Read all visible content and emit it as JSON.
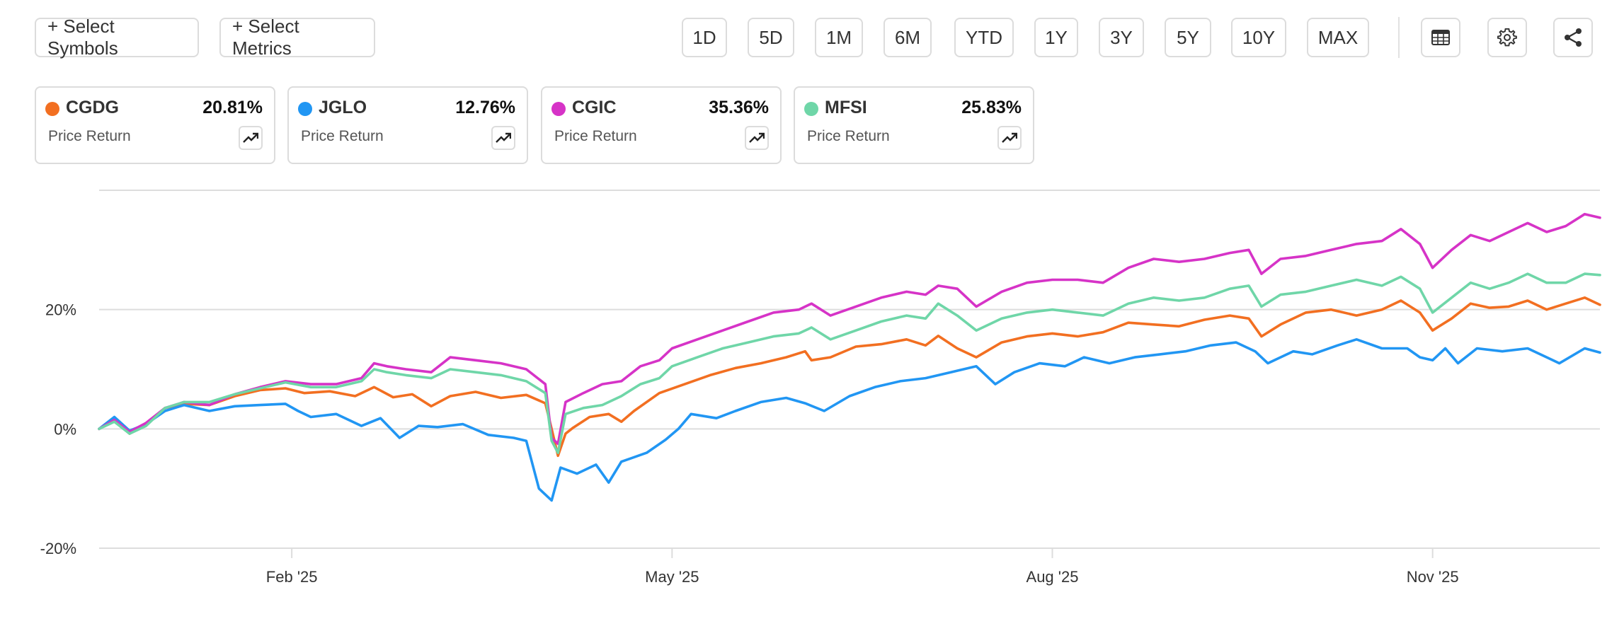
{
  "toolbar": {
    "select_symbols": "+ Select Symbols",
    "select_metrics": "+ Select Metrics",
    "ranges": [
      "1D",
      "5D",
      "1M",
      "6M",
      "YTD",
      "1Y",
      "3Y",
      "5Y",
      "10Y",
      "MAX"
    ],
    "icons": [
      "table-icon",
      "gear-icon",
      "share-icon"
    ]
  },
  "cards": [
    {
      "symbol": "CGDG",
      "value": "20.81%",
      "metric": "Price Return",
      "color": "#f26f21"
    },
    {
      "symbol": "JGLO",
      "value": "12.76%",
      "metric": "Price Return",
      "color": "#2196f3"
    },
    {
      "symbol": "CGIC",
      "value": "35.36%",
      "metric": "Price Return",
      "color": "#d633c7"
    },
    {
      "symbol": "MFSI",
      "value": "25.83%",
      "metric": "Price Return",
      "color": "#6fd6a8"
    }
  ],
  "chart_data": {
    "type": "line",
    "ylabel": "",
    "xlabel": "",
    "ylim": [
      -20,
      40
    ],
    "yticks": [
      -20,
      0,
      20,
      40
    ],
    "ytick_labels": [
      "-20%",
      "0%",
      "20%",
      ""
    ],
    "xticks": [
      {
        "label": "Feb '25",
        "x": 1.0
      },
      {
        "label": "May '25",
        "x": 4.0
      },
      {
        "label": "Aug '25",
        "x": 7.0
      },
      {
        "label": "Nov '25",
        "x": 10.0
      }
    ],
    "xlim": [
      -0.52,
      11.32
    ],
    "grid": true,
    "series": [
      {
        "name": "CGDG",
        "color": "#f26f21",
        "points": [
          [
            -0.52,
            0
          ],
          [
            -0.4,
            1.5
          ],
          [
            -0.28,
            -0.8
          ],
          [
            -0.15,
            0.8
          ],
          [
            0.0,
            3.5
          ],
          [
            0.15,
            4.2
          ],
          [
            0.35,
            4.0
          ],
          [
            0.55,
            5.5
          ],
          [
            0.75,
            6.5
          ],
          [
            0.95,
            6.8
          ],
          [
            1.1,
            6.0
          ],
          [
            1.3,
            6.3
          ],
          [
            1.5,
            5.5
          ],
          [
            1.65,
            7.0
          ],
          [
            1.8,
            5.3
          ],
          [
            1.95,
            5.8
          ],
          [
            2.1,
            3.8
          ],
          [
            2.25,
            5.5
          ],
          [
            2.45,
            6.2
          ],
          [
            2.65,
            5.2
          ],
          [
            2.85,
            5.7
          ],
          [
            3.0,
            4.3
          ],
          [
            3.05,
            0
          ],
          [
            3.1,
            -4.5
          ],
          [
            3.16,
            -0.8
          ],
          [
            3.22,
            0.2
          ],
          [
            3.35,
            2.0
          ],
          [
            3.5,
            2.5
          ],
          [
            3.6,
            1.2
          ],
          [
            3.7,
            3.0
          ],
          [
            3.9,
            6.0
          ],
          [
            4.1,
            7.5
          ],
          [
            4.3,
            9.0
          ],
          [
            4.5,
            10.2
          ],
          [
            4.7,
            11.0
          ],
          [
            4.9,
            12.0
          ],
          [
            5.05,
            13.0
          ],
          [
            5.1,
            11.5
          ],
          [
            5.25,
            12.0
          ],
          [
            5.45,
            13.8
          ],
          [
            5.65,
            14.2
          ],
          [
            5.85,
            15.0
          ],
          [
            6.0,
            14.0
          ],
          [
            6.1,
            15.6
          ],
          [
            6.25,
            13.5
          ],
          [
            6.4,
            12.0
          ],
          [
            6.6,
            14.5
          ],
          [
            6.8,
            15.5
          ],
          [
            7.0,
            16.0
          ],
          [
            7.2,
            15.5
          ],
          [
            7.4,
            16.2
          ],
          [
            7.6,
            17.8
          ],
          [
            7.8,
            17.5
          ],
          [
            8.0,
            17.2
          ],
          [
            8.2,
            18.3
          ],
          [
            8.4,
            19.0
          ],
          [
            8.55,
            18.5
          ],
          [
            8.65,
            15.5
          ],
          [
            8.8,
            17.5
          ],
          [
            9.0,
            19.5
          ],
          [
            9.2,
            20.0
          ],
          [
            9.4,
            19.0
          ],
          [
            9.6,
            20.0
          ],
          [
            9.75,
            21.5
          ],
          [
            9.9,
            19.5
          ],
          [
            10.0,
            16.5
          ],
          [
            10.15,
            18.5
          ],
          [
            10.3,
            21.0
          ],
          [
            10.45,
            20.3
          ],
          [
            10.6,
            20.5
          ],
          [
            10.75,
            21.5
          ],
          [
            10.9,
            20.0
          ],
          [
            11.05,
            21.0
          ],
          [
            11.2,
            22.0
          ],
          [
            11.32,
            20.8
          ]
        ]
      },
      {
        "name": "JGLO",
        "color": "#2196f3",
        "points": [
          [
            -0.52,
            0
          ],
          [
            -0.4,
            2.0
          ],
          [
            -0.28,
            -0.3
          ],
          [
            -0.15,
            0.8
          ],
          [
            0.0,
            3.0
          ],
          [
            0.15,
            4.0
          ],
          [
            0.35,
            3.0
          ],
          [
            0.55,
            3.8
          ],
          [
            0.75,
            4.0
          ],
          [
            0.95,
            4.2
          ],
          [
            1.05,
            3.0
          ],
          [
            1.15,
            2.0
          ],
          [
            1.35,
            2.5
          ],
          [
            1.55,
            0.5
          ],
          [
            1.7,
            1.8
          ],
          [
            1.85,
            -1.5
          ],
          [
            2.0,
            0.5
          ],
          [
            2.15,
            0.3
          ],
          [
            2.35,
            0.8
          ],
          [
            2.55,
            -1.0
          ],
          [
            2.75,
            -1.5
          ],
          [
            2.85,
            -2.0
          ],
          [
            2.95,
            -10.0
          ],
          [
            3.05,
            -12.0
          ],
          [
            3.12,
            -6.5
          ],
          [
            3.25,
            -7.5
          ],
          [
            3.4,
            -6.0
          ],
          [
            3.5,
            -9.0
          ],
          [
            3.6,
            -5.5
          ],
          [
            3.8,
            -4.0
          ],
          [
            3.95,
            -1.8
          ],
          [
            4.05,
            0
          ],
          [
            4.15,
            2.5
          ],
          [
            4.35,
            1.8
          ],
          [
            4.5,
            3.0
          ],
          [
            4.7,
            4.5
          ],
          [
            4.9,
            5.2
          ],
          [
            5.05,
            4.3
          ],
          [
            5.2,
            3.0
          ],
          [
            5.4,
            5.5
          ],
          [
            5.6,
            7.0
          ],
          [
            5.8,
            8.0
          ],
          [
            6.0,
            8.5
          ],
          [
            6.2,
            9.5
          ],
          [
            6.4,
            10.5
          ],
          [
            6.55,
            7.5
          ],
          [
            6.7,
            9.5
          ],
          [
            6.9,
            11.0
          ],
          [
            7.1,
            10.5
          ],
          [
            7.25,
            12.0
          ],
          [
            7.45,
            11.0
          ],
          [
            7.65,
            12.0
          ],
          [
            7.85,
            12.5
          ],
          [
            8.05,
            13.0
          ],
          [
            8.25,
            14.0
          ],
          [
            8.45,
            14.5
          ],
          [
            8.6,
            13.0
          ],
          [
            8.7,
            11.0
          ],
          [
            8.9,
            13.0
          ],
          [
            9.05,
            12.5
          ],
          [
            9.25,
            14.0
          ],
          [
            9.4,
            15.0
          ],
          [
            9.6,
            13.5
          ],
          [
            9.8,
            13.5
          ],
          [
            9.9,
            12.0
          ],
          [
            10.0,
            11.5
          ],
          [
            10.1,
            13.5
          ],
          [
            10.2,
            11.0
          ],
          [
            10.35,
            13.5
          ],
          [
            10.55,
            13.0
          ],
          [
            10.75,
            13.5
          ],
          [
            10.9,
            12.0
          ],
          [
            11.0,
            11.0
          ],
          [
            11.2,
            13.5
          ],
          [
            11.32,
            12.8
          ]
        ]
      },
      {
        "name": "CGIC",
        "color": "#d633c7",
        "points": [
          [
            -0.52,
            0
          ],
          [
            -0.4,
            1.5
          ],
          [
            -0.28,
            -0.5
          ],
          [
            -0.15,
            1.0
          ],
          [
            0.0,
            3.5
          ],
          [
            0.15,
            4.5
          ],
          [
            0.35,
            4.0
          ],
          [
            0.55,
            5.8
          ],
          [
            0.75,
            7.0
          ],
          [
            0.95,
            8.0
          ],
          [
            1.15,
            7.5
          ],
          [
            1.35,
            7.5
          ],
          [
            1.55,
            8.5
          ],
          [
            1.65,
            11.0
          ],
          [
            1.75,
            10.5
          ],
          [
            1.9,
            10.0
          ],
          [
            2.1,
            9.5
          ],
          [
            2.25,
            12.0
          ],
          [
            2.45,
            11.5
          ],
          [
            2.65,
            11.0
          ],
          [
            2.85,
            10.0
          ],
          [
            3.0,
            7.5
          ],
          [
            3.05,
            -1.5
          ],
          [
            3.1,
            -2.5
          ],
          [
            3.16,
            4.5
          ],
          [
            3.3,
            6.0
          ],
          [
            3.45,
            7.5
          ],
          [
            3.6,
            8.0
          ],
          [
            3.75,
            10.5
          ],
          [
            3.9,
            11.5
          ],
          [
            4.0,
            13.5
          ],
          [
            4.2,
            15.0
          ],
          [
            4.4,
            16.5
          ],
          [
            4.6,
            18.0
          ],
          [
            4.8,
            19.5
          ],
          [
            5.0,
            20.0
          ],
          [
            5.1,
            21.0
          ],
          [
            5.25,
            19.0
          ],
          [
            5.45,
            20.5
          ],
          [
            5.65,
            22.0
          ],
          [
            5.85,
            23.0
          ],
          [
            6.0,
            22.5
          ],
          [
            6.1,
            24.0
          ],
          [
            6.25,
            23.5
          ],
          [
            6.4,
            20.5
          ],
          [
            6.6,
            23.0
          ],
          [
            6.8,
            24.5
          ],
          [
            7.0,
            25.0
          ],
          [
            7.2,
            25.0
          ],
          [
            7.4,
            24.5
          ],
          [
            7.6,
            27.0
          ],
          [
            7.8,
            28.5
          ],
          [
            8.0,
            28.0
          ],
          [
            8.2,
            28.5
          ],
          [
            8.4,
            29.5
          ],
          [
            8.55,
            30.0
          ],
          [
            8.65,
            26.0
          ],
          [
            8.8,
            28.5
          ],
          [
            9.0,
            29.0
          ],
          [
            9.2,
            30.0
          ],
          [
            9.4,
            31.0
          ],
          [
            9.6,
            31.5
          ],
          [
            9.75,
            33.5
          ],
          [
            9.9,
            31.0
          ],
          [
            10.0,
            27.0
          ],
          [
            10.15,
            30.0
          ],
          [
            10.3,
            32.5
          ],
          [
            10.45,
            31.5
          ],
          [
            10.6,
            33.0
          ],
          [
            10.75,
            34.5
          ],
          [
            10.9,
            33.0
          ],
          [
            11.05,
            34.0
          ],
          [
            11.2,
            36.0
          ],
          [
            11.32,
            35.4
          ]
        ]
      },
      {
        "name": "MFSI",
        "color": "#6fd6a8",
        "points": [
          [
            -0.52,
            0
          ],
          [
            -0.4,
            1.2
          ],
          [
            -0.28,
            -0.8
          ],
          [
            -0.15,
            0.5
          ],
          [
            0.0,
            3.5
          ],
          [
            0.15,
            4.5
          ],
          [
            0.35,
            4.5
          ],
          [
            0.55,
            5.8
          ],
          [
            0.75,
            6.8
          ],
          [
            0.95,
            7.8
          ],
          [
            1.15,
            7.0
          ],
          [
            1.35,
            7.0
          ],
          [
            1.55,
            8.0
          ],
          [
            1.65,
            10.0
          ],
          [
            1.75,
            9.5
          ],
          [
            1.9,
            9.0
          ],
          [
            2.1,
            8.5
          ],
          [
            2.25,
            10.0
          ],
          [
            2.45,
            9.5
          ],
          [
            2.65,
            9.0
          ],
          [
            2.85,
            8.0
          ],
          [
            3.0,
            6.0
          ],
          [
            3.05,
            -2.0
          ],
          [
            3.1,
            -4.0
          ],
          [
            3.16,
            2.5
          ],
          [
            3.3,
            3.5
          ],
          [
            3.45,
            4.0
          ],
          [
            3.6,
            5.5
          ],
          [
            3.75,
            7.5
          ],
          [
            3.9,
            8.5
          ],
          [
            4.0,
            10.5
          ],
          [
            4.2,
            12.0
          ],
          [
            4.4,
            13.5
          ],
          [
            4.6,
            14.5
          ],
          [
            4.8,
            15.5
          ],
          [
            5.0,
            16.0
          ],
          [
            5.1,
            17.0
          ],
          [
            5.25,
            15.0
          ],
          [
            5.45,
            16.5
          ],
          [
            5.65,
            18.0
          ],
          [
            5.85,
            19.0
          ],
          [
            6.0,
            18.5
          ],
          [
            6.1,
            21.0
          ],
          [
            6.25,
            19.0
          ],
          [
            6.4,
            16.5
          ],
          [
            6.6,
            18.5
          ],
          [
            6.8,
            19.5
          ],
          [
            7.0,
            20.0
          ],
          [
            7.2,
            19.5
          ],
          [
            7.4,
            19.0
          ],
          [
            7.6,
            21.0
          ],
          [
            7.8,
            22.0
          ],
          [
            8.0,
            21.5
          ],
          [
            8.2,
            22.0
          ],
          [
            8.4,
            23.5
          ],
          [
            8.55,
            24.0
          ],
          [
            8.65,
            20.5
          ],
          [
            8.8,
            22.5
          ],
          [
            9.0,
            23.0
          ],
          [
            9.2,
            24.0
          ],
          [
            9.4,
            25.0
          ],
          [
            9.6,
            24.0
          ],
          [
            9.75,
            25.5
          ],
          [
            9.9,
            23.5
          ],
          [
            10.0,
            19.5
          ],
          [
            10.15,
            22.0
          ],
          [
            10.3,
            24.5
          ],
          [
            10.45,
            23.5
          ],
          [
            10.6,
            24.5
          ],
          [
            10.75,
            26.0
          ],
          [
            10.9,
            24.5
          ],
          [
            11.05,
            24.5
          ],
          [
            11.2,
            26.0
          ],
          [
            11.32,
            25.8
          ]
        ]
      }
    ]
  }
}
